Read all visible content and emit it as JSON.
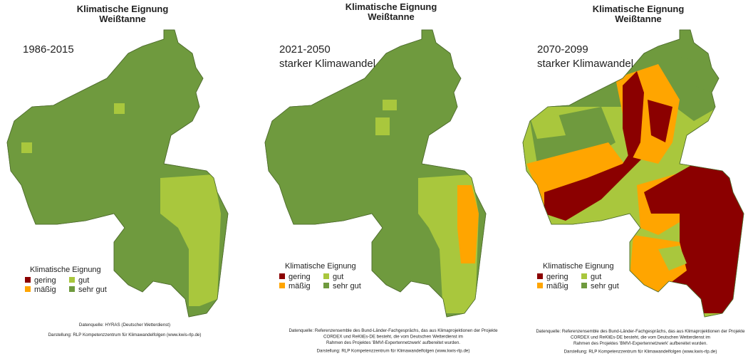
{
  "legend": {
    "title": "Klimatische Eignung",
    "classes": [
      {
        "label": "gering",
        "color": "#8b0000"
      },
      {
        "label": "mäßig",
        "color": "#ffa500"
      },
      {
        "label": "gut",
        "color": "#a9c73d"
      },
      {
        "label": "sehr gut",
        "color": "#6f9a3e"
      }
    ]
  },
  "panels": [
    {
      "title": [
        "Klimatische Eignung",
        "Weißtanne"
      ],
      "period": [
        "1986-2015"
      ],
      "source": [
        "Datenquelle: HYRAS (Deutscher Wetterdienst)",
        "Darstellung: RLP Kompetenzzentrum für Klimawandelfolgen (www.kwis-rlp.de)"
      ]
    },
    {
      "title": [
        "Klimatische Eignung",
        "Weißtanne"
      ],
      "period": [
        "2021-2050",
        "starker Klimawandel"
      ],
      "source": [
        "Datenquelle: Referenzensemble des Bund-Länder-Fachgesprächs, das aus Klimaprojektionen der Projekte",
        "CORDEX und ReKliEs-DE besteht, die vom Deutschen Wetterdienst im",
        "Rahmen des Projektes 'BMVI-Expertennetzwerk' aufbereitet wurden.",
        "Darstellung: RLP Kompetenzzentrum für Klimawandelfolgen (www.kwis-rlp.de)"
      ]
    },
    {
      "title": [
        "Klimatische Eignung",
        "Weißtanne"
      ],
      "period": [
        "2070-2099",
        "starker Klimawandel"
      ],
      "source": [
        "Datenquelle: Referenzensemble des Bund-Länder-Fachgesprächs, das aus Klimaprojektionen der Projekte",
        "CORDEX und ReKliEs-DE besteht, die vom Deutschen Wetterdienst im",
        "Rahmen des Projektes 'BMVI-Expertennetzwerk' aufbereitet wurden.",
        "Darstellung: RLP Kompetenzzentrum für Klimawandelfolgen (www.kwis-rlp.de)"
      ]
    }
  ]
}
